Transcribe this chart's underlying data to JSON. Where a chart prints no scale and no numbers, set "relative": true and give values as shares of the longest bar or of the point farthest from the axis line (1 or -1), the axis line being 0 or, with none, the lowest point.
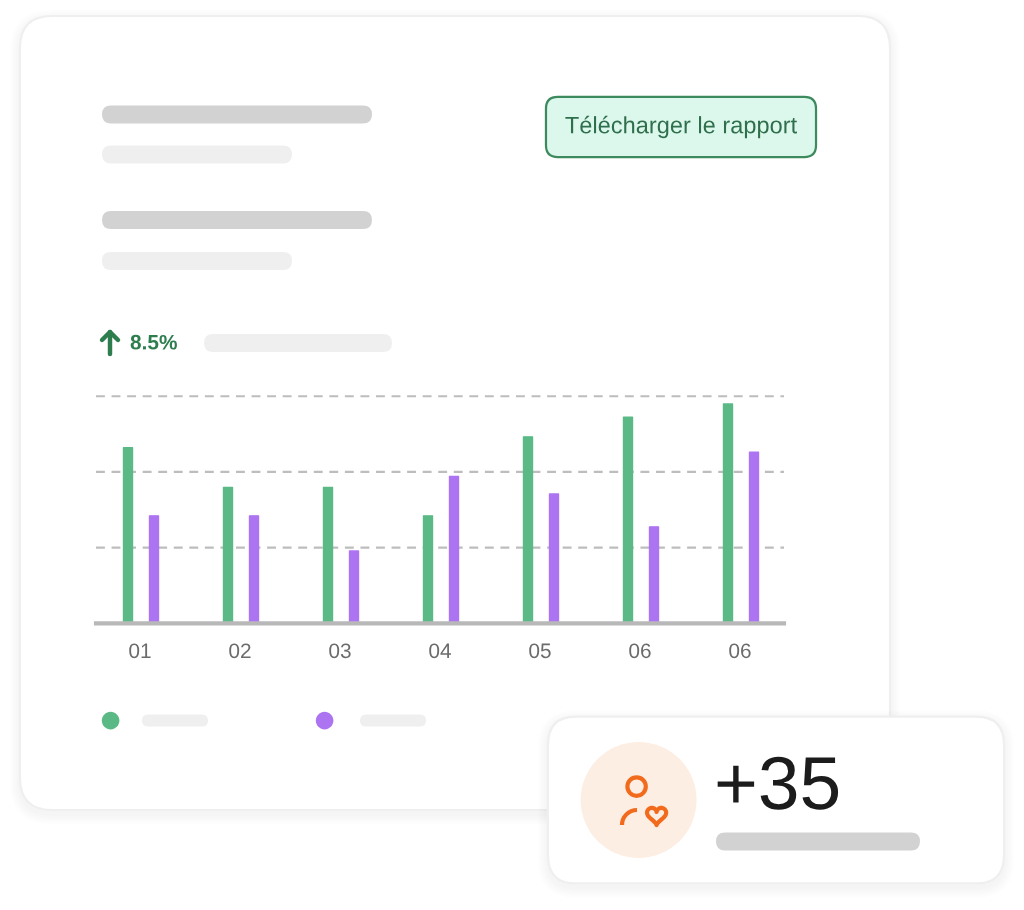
{
  "chart_data": {
    "type": "bar",
    "relative": true,
    "categories": [
      "01",
      "02",
      "03",
      "04",
      "05",
      "06",
      "06"
    ],
    "series": [
      {
        "color": "#5bb986",
        "values": [
          0.8,
          0.62,
          0.62,
          0.49,
          0.85,
          0.94,
          1
        ]
      },
      {
        "color": "#ad74f2",
        "values": [
          0.49,
          0.49,
          0.33,
          0.67,
          0.59,
          0.44,
          0.78
        ]
      }
    ],
    "ref_lines": [
      {
        "axis": "y",
        "value": 0.345,
        "color": "#bdbdbd",
        "line_style": "dashed"
      },
      {
        "axis": "y",
        "value": 0.69,
        "color": "#bdbdbd",
        "line_style": "dashed"
      },
      {
        "axis": "y",
        "value": 1.035,
        "color": "#bdbdbd",
        "line_style": "dashed"
      }
    ],
    "annotations": [
      "Télécharger le rapport",
      "8.5%",
      "+35"
    ]
  }
}
